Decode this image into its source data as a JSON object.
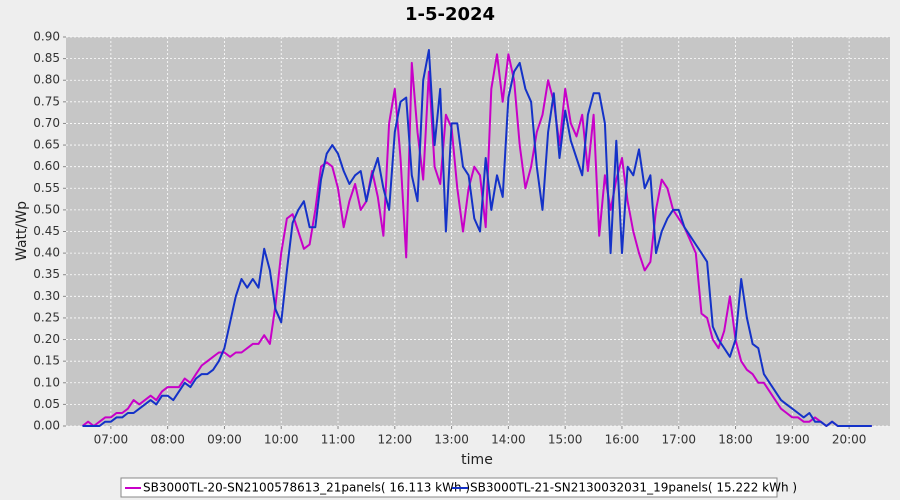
{
  "chart_data": {
    "type": "line",
    "title": "1-5-2024",
    "xlabel": "time",
    "ylabel": "Watt/Wp",
    "grid": true,
    "legend": "bottom",
    "xlim": [
      6.21,
      20.72
    ],
    "ylim": [
      0,
      0.9
    ],
    "xticks": [
      {
        "value": 7,
        "label": "07:00"
      },
      {
        "value": 8,
        "label": "08:00"
      },
      {
        "value": 9,
        "label": "09:00"
      },
      {
        "value": 10,
        "label": "10:00"
      },
      {
        "value": 11,
        "label": "11:00"
      },
      {
        "value": 12,
        "label": "12:00"
      },
      {
        "value": 13,
        "label": "13:00"
      },
      {
        "value": 14,
        "label": "14:00"
      },
      {
        "value": 15,
        "label": "15:00"
      },
      {
        "value": 16,
        "label": "16:00"
      },
      {
        "value": 17,
        "label": "17:00"
      },
      {
        "value": 18,
        "label": "18:00"
      },
      {
        "value": 19,
        "label": "19:00"
      },
      {
        "value": 20,
        "label": "20:00"
      }
    ],
    "yticks": [
      {
        "value": 0,
        "label": "0.00"
      },
      {
        "value": 0.05,
        "label": "0.05"
      },
      {
        "value": 0.1,
        "label": "0.10"
      },
      {
        "value": 0.15,
        "label": "0.15"
      },
      {
        "value": 0.2,
        "label": "0.20"
      },
      {
        "value": 0.25,
        "label": "0.25"
      },
      {
        "value": 0.3,
        "label": "0.30"
      },
      {
        "value": 0.35,
        "label": "0.35"
      },
      {
        "value": 0.4,
        "label": "0.40"
      },
      {
        "value": 0.45,
        "label": "0.45"
      },
      {
        "value": 0.5,
        "label": "0.50"
      },
      {
        "value": 0.55,
        "label": "0.55"
      },
      {
        "value": 0.6,
        "label": "0.60"
      },
      {
        "value": 0.65,
        "label": "0.65"
      },
      {
        "value": 0.7,
        "label": "0.70"
      },
      {
        "value": 0.75,
        "label": "0.75"
      },
      {
        "value": 0.8,
        "label": "0.80"
      },
      {
        "value": 0.85,
        "label": "0.85"
      },
      {
        "value": 0.9,
        "label": "0.90"
      }
    ],
    "x": [
      6.5,
      6.6,
      6.7,
      6.8,
      6.9,
      7.0,
      7.1,
      7.2,
      7.3,
      7.4,
      7.5,
      7.6,
      7.7,
      7.8,
      7.9,
      8.0,
      8.1,
      8.2,
      8.3,
      8.4,
      8.5,
      8.6,
      8.7,
      8.8,
      8.9,
      9.0,
      9.1,
      9.2,
      9.3,
      9.4,
      9.5,
      9.6,
      9.7,
      9.8,
      9.9,
      10.0,
      10.1,
      10.2,
      10.3,
      10.4,
      10.5,
      10.6,
      10.7,
      10.8,
      10.9,
      11.0,
      11.1,
      11.2,
      11.3,
      11.4,
      11.5,
      11.6,
      11.7,
      11.8,
      11.9,
      12.0,
      12.1,
      12.2,
      12.3,
      12.4,
      12.5,
      12.6,
      12.7,
      12.8,
      12.9,
      13.0,
      13.1,
      13.2,
      13.3,
      13.4,
      13.5,
      13.6,
      13.7,
      13.8,
      13.9,
      14.0,
      14.1,
      14.2,
      14.3,
      14.4,
      14.5,
      14.6,
      14.7,
      14.8,
      14.9,
      15.0,
      15.1,
      15.2,
      15.3,
      15.4,
      15.5,
      15.6,
      15.7,
      15.8,
      15.9,
      16.0,
      16.1,
      16.2,
      16.3,
      16.4,
      16.5,
      16.6,
      16.7,
      16.8,
      16.9,
      17.0,
      17.1,
      17.2,
      17.3,
      17.4,
      17.5,
      17.6,
      17.7,
      17.8,
      17.9,
      18.0,
      18.1,
      18.2,
      18.3,
      18.4,
      18.5,
      18.6,
      18.7,
      18.8,
      18.9,
      19.0,
      19.1,
      19.2,
      19.3,
      19.4,
      19.5,
      19.6,
      19.7,
      19.8,
      19.9,
      20.0,
      20.1,
      20.2,
      20.3,
      20.4
    ],
    "series": [
      {
        "name": "SB3000TL-20-SN2100578613_21panels( 16.113 kWh )",
        "color": "#c800c8",
        "values": [
          0,
          0.01,
          0,
          0.01,
          0.02,
          0.02,
          0.03,
          0.03,
          0.04,
          0.06,
          0.05,
          0.06,
          0.07,
          0.06,
          0.08,
          0.09,
          0.09,
          0.09,
          0.11,
          0.1,
          0.12,
          0.14,
          0.15,
          0.16,
          0.17,
          0.17,
          0.16,
          0.17,
          0.17,
          0.18,
          0.19,
          0.19,
          0.21,
          0.19,
          0.28,
          0.4,
          0.48,
          0.49,
          0.45,
          0.41,
          0.42,
          0.5,
          0.6,
          0.61,
          0.6,
          0.55,
          0.46,
          0.52,
          0.56,
          0.5,
          0.52,
          0.59,
          0.53,
          0.44,
          0.7,
          0.78,
          0.62,
          0.39,
          0.84,
          0.68,
          0.57,
          0.82,
          0.6,
          0.56,
          0.72,
          0.69,
          0.55,
          0.45,
          0.55,
          0.6,
          0.58,
          0.46,
          0.78,
          0.86,
          0.75,
          0.86,
          0.8,
          0.65,
          0.55,
          0.6,
          0.68,
          0.72,
          0.8,
          0.75,
          0.65,
          0.78,
          0.7,
          0.67,
          0.72,
          0.59,
          0.72,
          0.44,
          0.58,
          0.5,
          0.57,
          0.62,
          0.52,
          0.45,
          0.4,
          0.36,
          0.38,
          0.5,
          0.57,
          0.55,
          0.5,
          0.48,
          0.46,
          0.43,
          0.4,
          0.26,
          0.25,
          0.2,
          0.18,
          0.22,
          0.3,
          0.2,
          0.15,
          0.13,
          0.12,
          0.1,
          0.1,
          0.08,
          0.06,
          0.04,
          0.03,
          0.02,
          0.02,
          0.01,
          0.01,
          0.02,
          0.01,
          0,
          0.01,
          0,
          0,
          0,
          0,
          0,
          0,
          0
        ]
      },
      {
        "name": "SB3000TL-21-SN2130032031_19panels( 15.222 kWh )",
        "color": "#1432c8",
        "values": [
          0,
          0,
          0,
          0,
          0.01,
          0.01,
          0.02,
          0.02,
          0.03,
          0.03,
          0.04,
          0.05,
          0.06,
          0.05,
          0.07,
          0.07,
          0.06,
          0.08,
          0.1,
          0.09,
          0.11,
          0.12,
          0.12,
          0.13,
          0.15,
          0.18,
          0.24,
          0.3,
          0.34,
          0.32,
          0.34,
          0.32,
          0.41,
          0.36,
          0.27,
          0.24,
          0.36,
          0.47,
          0.5,
          0.52,
          0.46,
          0.46,
          0.57,
          0.63,
          0.65,
          0.63,
          0.59,
          0.56,
          0.58,
          0.59,
          0.52,
          0.58,
          0.62,
          0.55,
          0.5,
          0.68,
          0.75,
          0.76,
          0.58,
          0.52,
          0.8,
          0.87,
          0.65,
          0.78,
          0.45,
          0.7,
          0.7,
          0.6,
          0.58,
          0.48,
          0.45,
          0.62,
          0.5,
          0.58,
          0.53,
          0.76,
          0.82,
          0.84,
          0.78,
          0.75,
          0.6,
          0.5,
          0.68,
          0.77,
          0.62,
          0.73,
          0.66,
          0.62,
          0.58,
          0.72,
          0.77,
          0.77,
          0.7,
          0.4,
          0.66,
          0.4,
          0.6,
          0.58,
          0.64,
          0.55,
          0.58,
          0.4,
          0.45,
          0.48,
          0.5,
          0.5,
          0.46,
          0.44,
          0.42,
          0.4,
          0.38,
          0.23,
          0.2,
          0.18,
          0.16,
          0.2,
          0.34,
          0.25,
          0.19,
          0.18,
          0.12,
          0.1,
          0.08,
          0.06,
          0.05,
          0.04,
          0.03,
          0.02,
          0.03,
          0.01,
          0.01,
          0,
          0.01,
          0,
          0,
          0,
          0,
          0,
          0,
          0
        ]
      }
    ]
  }
}
